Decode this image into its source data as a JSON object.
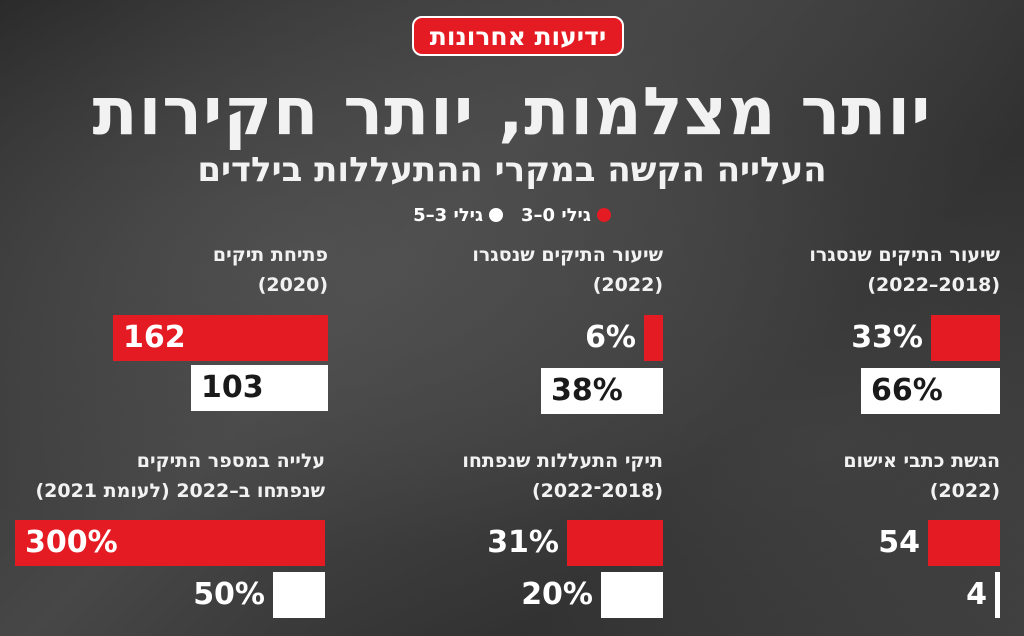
{
  "header": {
    "logo": "ידיעות אחרונות",
    "title": "יותר מצלמות, יותר חקירות",
    "subtitle": "העלייה הקשה במקרי ההתעללות בילדים"
  },
  "legend": [
    {
      "label": "גילי 0–3",
      "color": "#e51b24"
    },
    {
      "label": "גילי 3–5",
      "color": "#ffffff"
    }
  ],
  "chart_data": [
    {
      "type": "bar",
      "title": "שיעור התיקים שנסגרו",
      "subtitle": "(2018–2022)",
      "series": [
        {
          "name": "גילי 0–3",
          "values": [
            33
          ],
          "label": "33%"
        },
        {
          "name": "גילי 3–5",
          "values": [
            66
          ],
          "label": "66%"
        }
      ]
    },
    {
      "type": "bar",
      "title": "שיעור התיקים שנסגרו",
      "subtitle": "(2022)",
      "series": [
        {
          "name": "גילי 0–3",
          "values": [
            6
          ],
          "label": "6%"
        },
        {
          "name": "גילי 3–5",
          "values": [
            38
          ],
          "label": "38%"
        }
      ]
    },
    {
      "type": "bar",
      "title": "פתיחת תיקים",
      "subtitle": "(2020)",
      "series": [
        {
          "name": "גילי 0–3",
          "values": [
            162
          ],
          "label": "162"
        },
        {
          "name": "גילי 3–5",
          "values": [
            103
          ],
          "label": "103"
        }
      ]
    },
    {
      "type": "bar",
      "title": "הגשת כתבי אישום",
      "subtitle": "(2022)",
      "series": [
        {
          "name": "גילי 0–3",
          "values": [
            54
          ],
          "label": "54"
        },
        {
          "name": "גילי 3–5",
          "values": [
            4
          ],
          "label": "4"
        }
      ]
    },
    {
      "type": "bar",
      "title": "תיקי התעללות שנפתחו",
      "subtitle": "(2018־2022)",
      "series": [
        {
          "name": "גילי 0–3",
          "values": [
            31
          ],
          "label": "31%"
        },
        {
          "name": "גילי 3–5",
          "values": [
            20
          ],
          "label": "20%"
        }
      ]
    },
    {
      "type": "bar",
      "title": "עלייה במספר התיקים",
      "subtitle": "שנפתחו ב–2022 (לעומת 2021)",
      "series": [
        {
          "name": "גילי 0–3",
          "values": [
            300
          ],
          "label": "300%"
        },
        {
          "name": "גילי 3–5",
          "values": [
            50
          ],
          "label": "50%"
        }
      ]
    }
  ]
}
